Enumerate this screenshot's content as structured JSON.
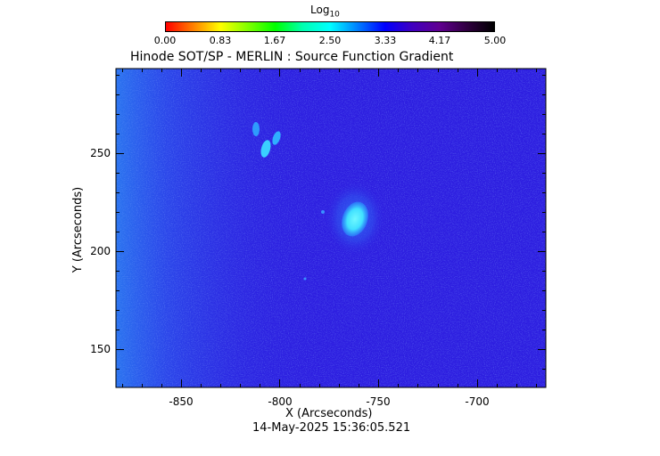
{
  "colorbar": {
    "title_main": "Log",
    "title_sub": "10",
    "ticks": [
      "0.00",
      "0.83",
      "1.67",
      "2.50",
      "3.33",
      "4.17",
      "5.00"
    ],
    "colors": [
      "#ff0000",
      "#ff8000",
      "#ffff00",
      "#80ff00",
      "#00ff00",
      "#00ffb0",
      "#00ffff",
      "#0080ff",
      "#0000ff",
      "#4000c0",
      "#600090",
      "#300040",
      "#000000"
    ]
  },
  "plot": {
    "title": "Hinode SOT/SP - MERLIN : Source Function Gradient",
    "xlabel": "X (Arcseconds)",
    "ylabel": "Y (Arcseconds)",
    "xticks": [
      "-850",
      "-800",
      "-750",
      "-700"
    ],
    "yticks": [
      "250",
      "200",
      "150"
    ],
    "xlim": [
      -880,
      -662
    ],
    "ylim": [
      131,
      294
    ],
    "timestamp": "14-May-2025 15:36:05.521"
  },
  "image_colors": {
    "background": "#2d1ee0",
    "left_edge": "#2a6ef0",
    "bright_region": "#4cf0ff",
    "halo": "#2f55f0"
  }
}
